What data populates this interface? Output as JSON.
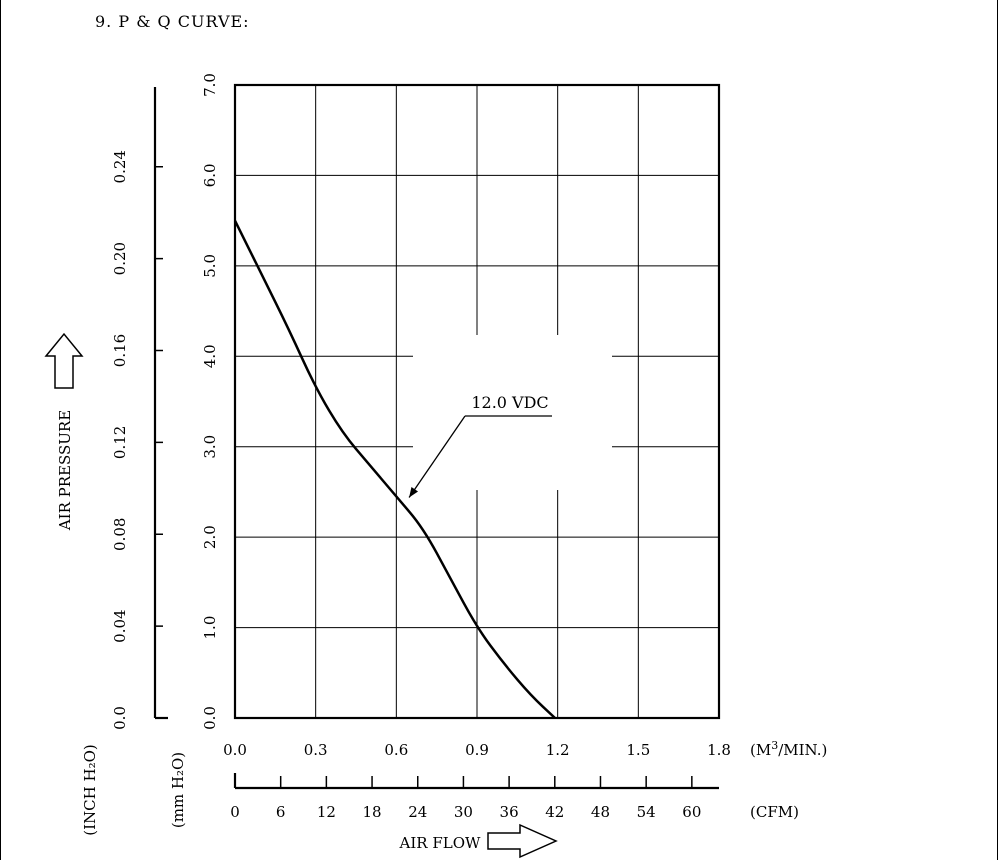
{
  "section_title": "9. P & Q CURVE:",
  "chart_data": {
    "type": "line",
    "title": "P & Q CURVE",
    "xlabel": "AIR FLOW",
    "ylabel": "AIR PRESSURE",
    "x_unit_primary": "(M³/MIN.)",
    "x_unit_primary_main": "(M",
    "x_unit_primary_sup": "3",
    "x_unit_primary_tail": "/MIN.)",
    "x_unit_secondary": "(CFM)",
    "y_unit_primary_label": "(mm H₂O)",
    "y_unit_secondary_label": "(INCH H₂O)",
    "xlim": [
      0,
      1.8
    ],
    "ylim": [
      0,
      7.0
    ],
    "x_ticks": [
      "0.0",
      "0.3",
      "0.6",
      "0.9",
      "1.2",
      "1.5",
      "1.8"
    ],
    "x_tick_values": [
      0,
      0.3,
      0.6,
      0.9,
      1.2,
      1.5,
      1.8
    ],
    "cfm_ticks": [
      "0",
      "6",
      "12",
      "18",
      "24",
      "30",
      "36",
      "42",
      "48",
      "54",
      "60"
    ],
    "cfm_tick_values": [
      0,
      6,
      12,
      18,
      24,
      30,
      36,
      42,
      48,
      54,
      60
    ],
    "y_ticks_mm": [
      "0.0",
      "1.0",
      "2.0",
      "3.0",
      "4.0",
      "5.0",
      "6.0",
      "7.0"
    ],
    "y_tick_values_mm": [
      0,
      1,
      2,
      3,
      4,
      5,
      6,
      7
    ],
    "y_ticks_inch": [
      "0.0",
      "0.04",
      "0.08",
      "0.12",
      "0.16",
      "0.20",
      "0.24"
    ],
    "y_tick_values_inch": [
      0,
      0.04,
      0.08,
      0.12,
      0.16,
      0.2,
      0.24
    ],
    "grid": true,
    "series": [
      {
        "name": "12.0 VDC",
        "x": [
          0.0,
          0.1,
          0.2,
          0.3,
          0.4,
          0.5,
          0.6,
          0.7,
          0.8,
          0.9,
          1.0,
          1.1,
          1.19
        ],
        "y": [
          5.5,
          4.9,
          4.3,
          3.65,
          3.15,
          2.8,
          2.45,
          2.1,
          1.55,
          1.0,
          0.6,
          0.25,
          0.0
        ]
      }
    ],
    "annotation": {
      "text": "12.0 VDC",
      "target_x": 0.64,
      "target_y": 2.35
    }
  }
}
